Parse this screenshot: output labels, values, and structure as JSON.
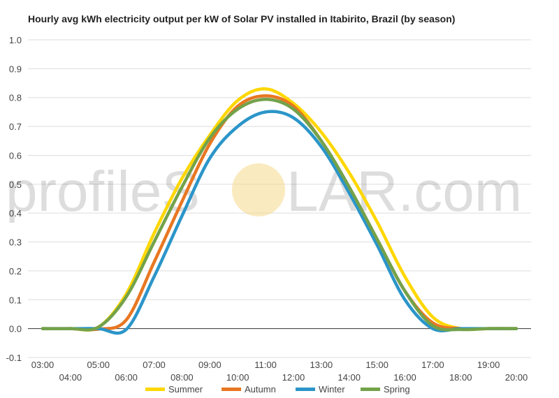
{
  "watermark": {
    "before": "profileS",
    "after": "LAR.com"
  },
  "chart_data": {
    "type": "line",
    "title": "Hourly avg kWh electricity output per kW of Solar PV installed in Itabirito, Brazil (by season)",
    "xlabel": "",
    "ylabel": "",
    "x": [
      "03:00",
      "04:00",
      "05:00",
      "06:00",
      "07:00",
      "08:00",
      "09:00",
      "10:00",
      "11:00",
      "12:00",
      "13:00",
      "14:00",
      "15:00",
      "16:00",
      "17:00",
      "18:00",
      "19:00",
      "20:00"
    ],
    "ylim": [
      -0.1,
      1.0
    ],
    "yticks": [
      "-0.1",
      "0.0",
      "0.1",
      "0.2",
      "0.3",
      "0.4",
      "0.5",
      "0.6",
      "0.7",
      "0.8",
      "0.9",
      "1.0"
    ],
    "grid": true,
    "legend_position": "bottom",
    "series": [
      {
        "name": "Summer",
        "color": "#FFD700",
        "values": [
          0,
          0,
          0.005,
          0.12,
          0.33,
          0.52,
          0.67,
          0.79,
          0.83,
          0.78,
          0.68,
          0.54,
          0.37,
          0.18,
          0.04,
          0,
          0,
          0
        ]
      },
      {
        "name": "Autumn",
        "color": "#E87722",
        "values": [
          0,
          0,
          -0.002,
          0.03,
          0.23,
          0.44,
          0.64,
          0.77,
          0.806,
          0.77,
          0.65,
          0.49,
          0.31,
          0.13,
          0.02,
          0,
          0,
          0
        ]
      },
      {
        "name": "Winter",
        "color": "#2B95C9",
        "values": [
          0,
          0,
          0,
          -0.003,
          0.18,
          0.39,
          0.59,
          0.7,
          0.75,
          0.73,
          0.63,
          0.47,
          0.29,
          0.1,
          0,
          0,
          0,
          0
        ]
      },
      {
        "name": "Spring",
        "color": "#73A24A",
        "values": [
          0,
          0,
          0.005,
          0.11,
          0.3,
          0.49,
          0.66,
          0.76,
          0.794,
          0.76,
          0.65,
          0.49,
          0.31,
          0.13,
          0.01,
          -0.003,
          0,
          0
        ]
      }
    ]
  }
}
